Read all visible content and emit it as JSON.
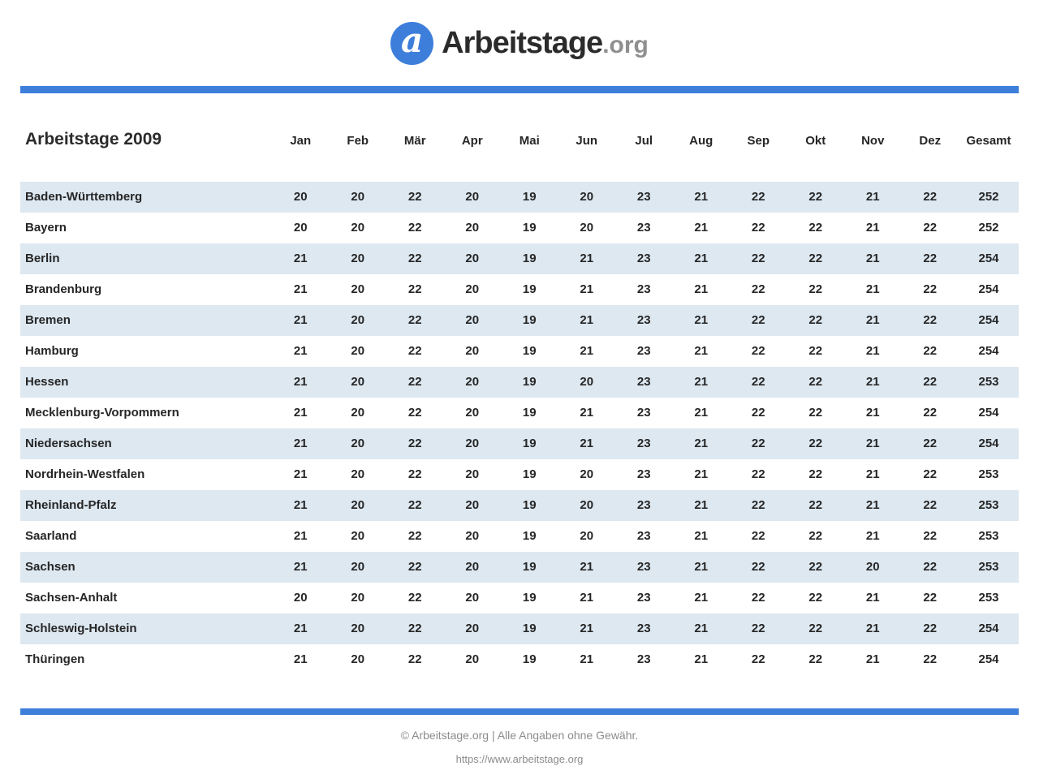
{
  "logo": {
    "icon": "a",
    "text": "Arbeitstage",
    "suffix": ".org"
  },
  "colors": {
    "accent": "#3d7edb",
    "stripe": "#dde8f1",
    "text_dark": "#262626",
    "muted": "#8c8c8c"
  },
  "table": {
    "title": "Arbeitstage 2009",
    "columns": [
      "Jan",
      "Feb",
      "Mär",
      "Apr",
      "Mai",
      "Jun",
      "Jul",
      "Aug",
      "Sep",
      "Okt",
      "Nov",
      "Dez",
      "Gesamt"
    ],
    "rows": [
      {
        "name": "Baden-Württemberg",
        "values": [
          20,
          20,
          22,
          20,
          19,
          20,
          23,
          21,
          22,
          22,
          21,
          22,
          252
        ]
      },
      {
        "name": "Bayern",
        "values": [
          20,
          20,
          22,
          20,
          19,
          20,
          23,
          21,
          22,
          22,
          21,
          22,
          252
        ]
      },
      {
        "name": "Berlin",
        "values": [
          21,
          20,
          22,
          20,
          19,
          21,
          23,
          21,
          22,
          22,
          21,
          22,
          254
        ]
      },
      {
        "name": "Brandenburg",
        "values": [
          21,
          20,
          22,
          20,
          19,
          21,
          23,
          21,
          22,
          22,
          21,
          22,
          254
        ]
      },
      {
        "name": "Bremen",
        "values": [
          21,
          20,
          22,
          20,
          19,
          21,
          23,
          21,
          22,
          22,
          21,
          22,
          254
        ]
      },
      {
        "name": "Hamburg",
        "values": [
          21,
          20,
          22,
          20,
          19,
          21,
          23,
          21,
          22,
          22,
          21,
          22,
          254
        ]
      },
      {
        "name": "Hessen",
        "values": [
          21,
          20,
          22,
          20,
          19,
          20,
          23,
          21,
          22,
          22,
          21,
          22,
          253
        ]
      },
      {
        "name": "Mecklenburg-Vorpommern",
        "values": [
          21,
          20,
          22,
          20,
          19,
          21,
          23,
          21,
          22,
          22,
          21,
          22,
          254
        ]
      },
      {
        "name": "Niedersachsen",
        "values": [
          21,
          20,
          22,
          20,
          19,
          21,
          23,
          21,
          22,
          22,
          21,
          22,
          254
        ]
      },
      {
        "name": "Nordrhein-Westfalen",
        "values": [
          21,
          20,
          22,
          20,
          19,
          20,
          23,
          21,
          22,
          22,
          21,
          22,
          253
        ]
      },
      {
        "name": "Rheinland-Pfalz",
        "values": [
          21,
          20,
          22,
          20,
          19,
          20,
          23,
          21,
          22,
          22,
          21,
          22,
          253
        ]
      },
      {
        "name": "Saarland",
        "values": [
          21,
          20,
          22,
          20,
          19,
          20,
          23,
          21,
          22,
          22,
          21,
          22,
          253
        ]
      },
      {
        "name": "Sachsen",
        "values": [
          21,
          20,
          22,
          20,
          19,
          21,
          23,
          21,
          22,
          22,
          20,
          22,
          253
        ]
      },
      {
        "name": "Sachsen-Anhalt",
        "values": [
          20,
          20,
          22,
          20,
          19,
          21,
          23,
          21,
          22,
          22,
          21,
          22,
          253
        ]
      },
      {
        "name": "Schleswig-Holstein",
        "values": [
          21,
          20,
          22,
          20,
          19,
          21,
          23,
          21,
          22,
          22,
          21,
          22,
          254
        ]
      },
      {
        "name": "Thüringen",
        "values": [
          21,
          20,
          22,
          20,
          19,
          21,
          23,
          21,
          22,
          22,
          21,
          22,
          254
        ]
      }
    ]
  },
  "footer": {
    "copyright": "© Arbeitstage.org | Alle Angaben ohne Gewähr.",
    "url": "https://www.arbeitstage.org"
  }
}
